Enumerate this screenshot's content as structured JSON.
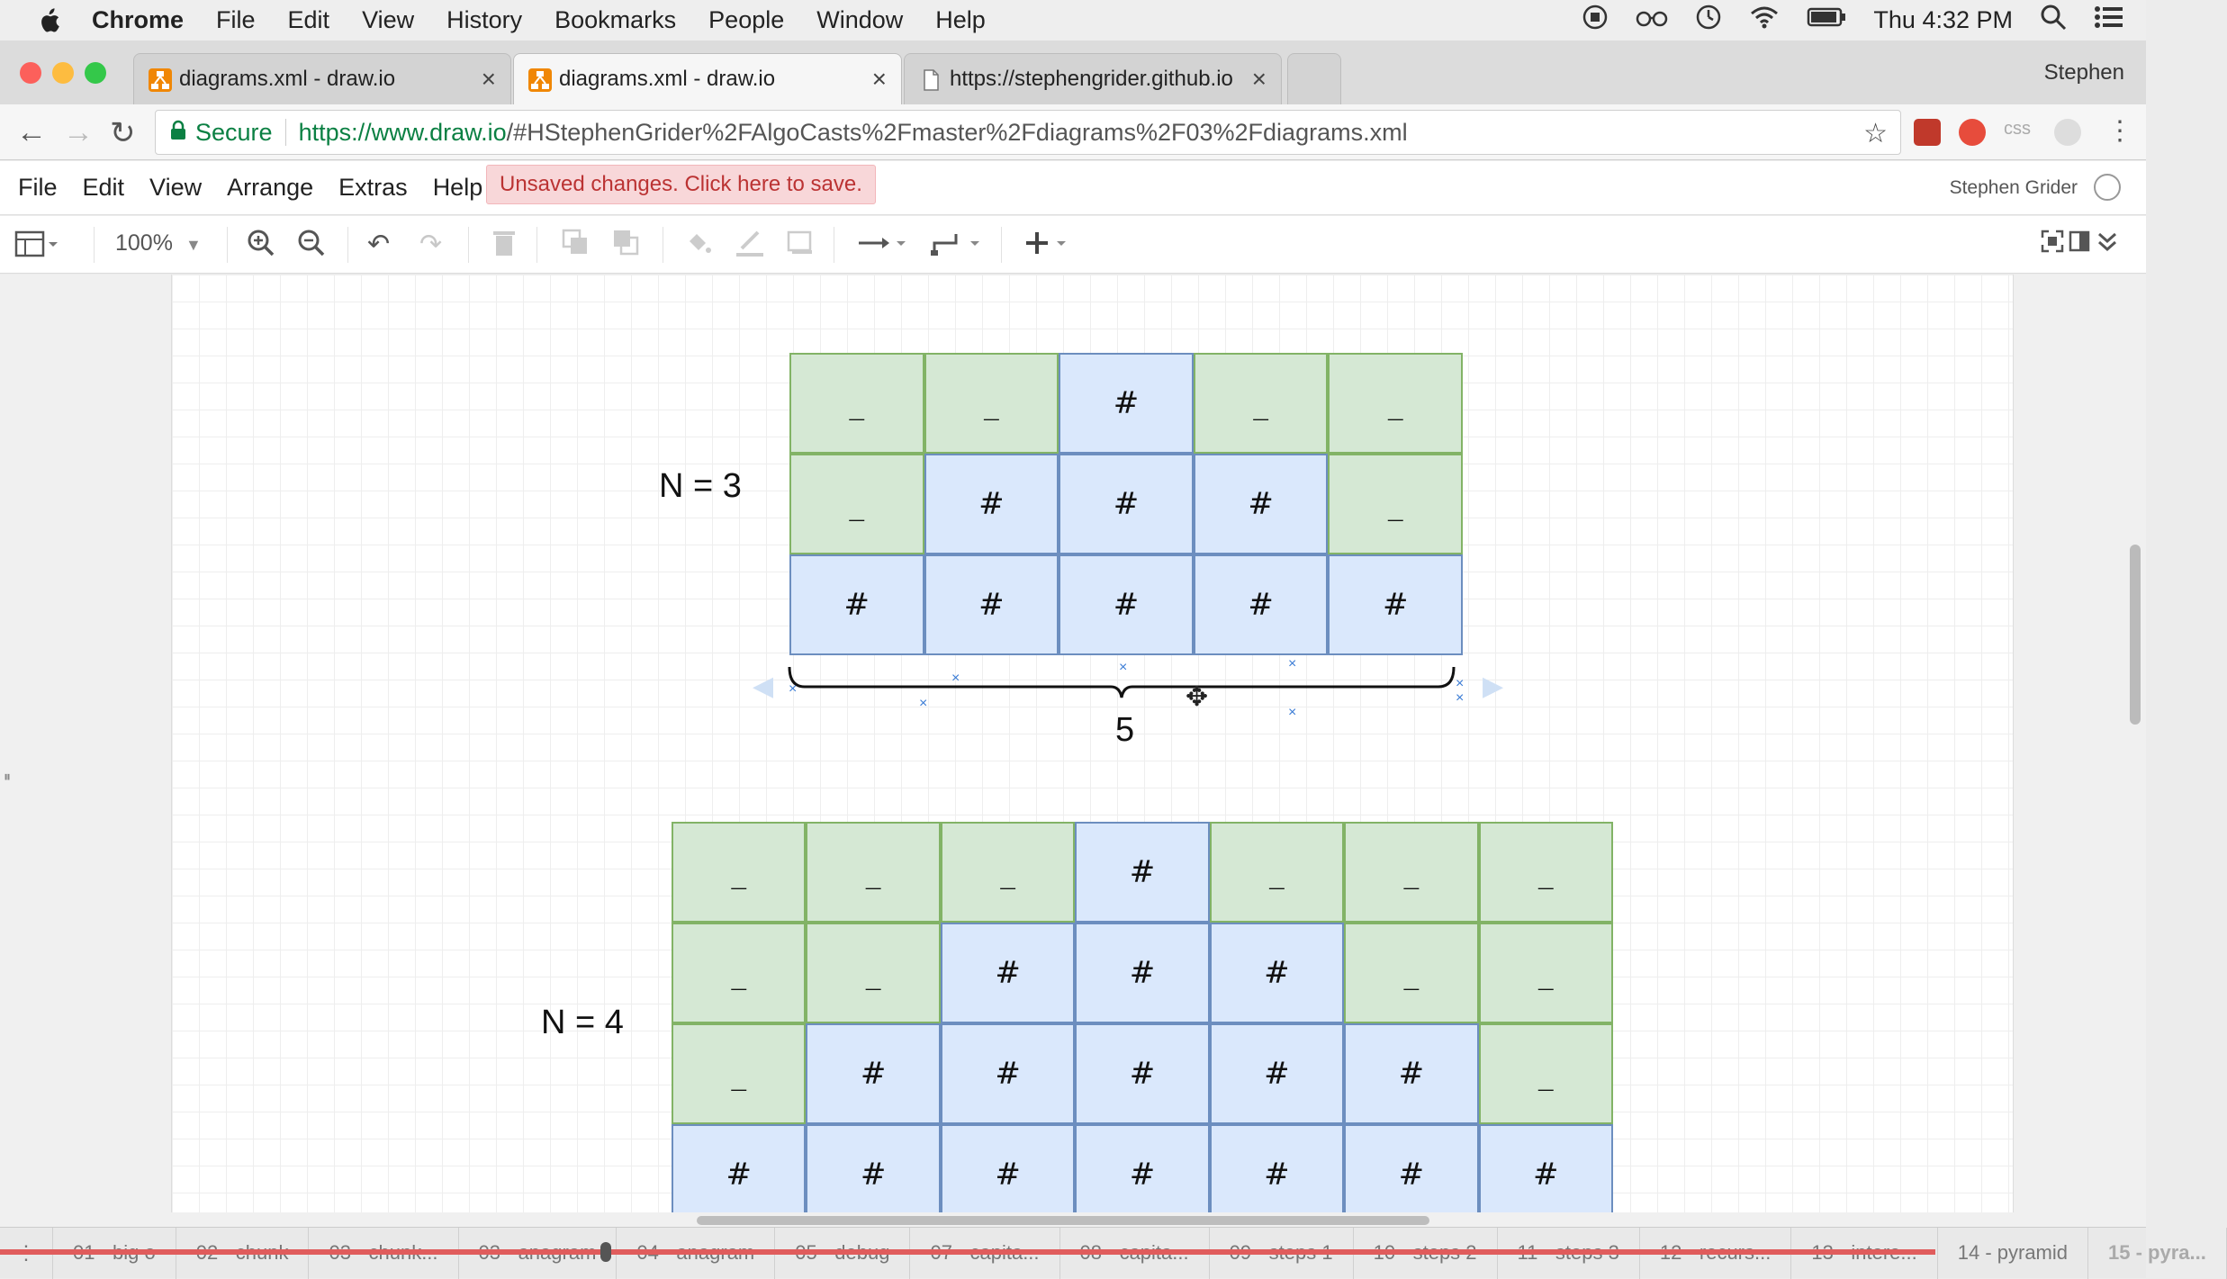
{
  "menubar": {
    "app": "Chrome",
    "items": [
      "File",
      "Edit",
      "View",
      "History",
      "Bookmarks",
      "People",
      "Window",
      "Help"
    ],
    "clock": "Thu 4:32 PM"
  },
  "tabs": [
    {
      "title": "diagrams.xml - draw.io",
      "active": false
    },
    {
      "title": "diagrams.xml - draw.io",
      "active": true
    },
    {
      "title": "https://stephengrider.github.io",
      "active": false
    }
  ],
  "profile": "Stephen",
  "address": {
    "secure_label": "Secure",
    "url_host": "https://www.draw.io",
    "url_rest": "/#HStephenGrider%2FAlgoCasts%2Fmaster%2Fdiagrams%2F03%2Fdiagrams.xml",
    "ext_label": "css"
  },
  "appmenu": {
    "items": [
      "File",
      "Edit",
      "View",
      "Arrange",
      "Extras",
      "Help"
    ],
    "unsaved": "Unsaved changes. Click here to save.",
    "user": "Stephen Grider"
  },
  "toolbar": {
    "zoom": "100%"
  },
  "diagram": {
    "n3_label": "N = 3",
    "n4_label": "N = 4",
    "brace_label": "5",
    "n3_rows": [
      [
        "_",
        "_",
        "#",
        "_",
        "_"
      ],
      [
        "_",
        "#",
        "#",
        "#",
        "_"
      ],
      [
        "#",
        "#",
        "#",
        "#",
        "#"
      ]
    ],
    "n4_rows": [
      [
        "_",
        "_",
        "_",
        "#",
        "_",
        "_",
        "_"
      ],
      [
        "_",
        "_",
        "#",
        "#",
        "#",
        "_",
        "_"
      ],
      [
        "_",
        "#",
        "#",
        "#",
        "#",
        "#",
        "_"
      ],
      [
        "#",
        "#",
        "#",
        "#",
        "#",
        "#",
        "#"
      ]
    ]
  },
  "pagetabs": [
    "01 - big o",
    "02 - chunk",
    "03 - chunk...",
    "03 - anagram",
    "04 - anagram",
    "05 - debug",
    "07 - capita...",
    "08 - capita...",
    "09 - steps 1",
    "10 - steps 2",
    "11 - steps 3",
    "12 - recurs...",
    "13 - intere...",
    "14 - pyramid",
    "15 - pyra..."
  ],
  "colors": {
    "space_fill": "#d5e8d4",
    "space_stroke": "#82b366",
    "hash_fill": "#dae8fc",
    "hash_stroke": "#6c8ebf",
    "unsaved_bg": "#f8d7d9"
  }
}
